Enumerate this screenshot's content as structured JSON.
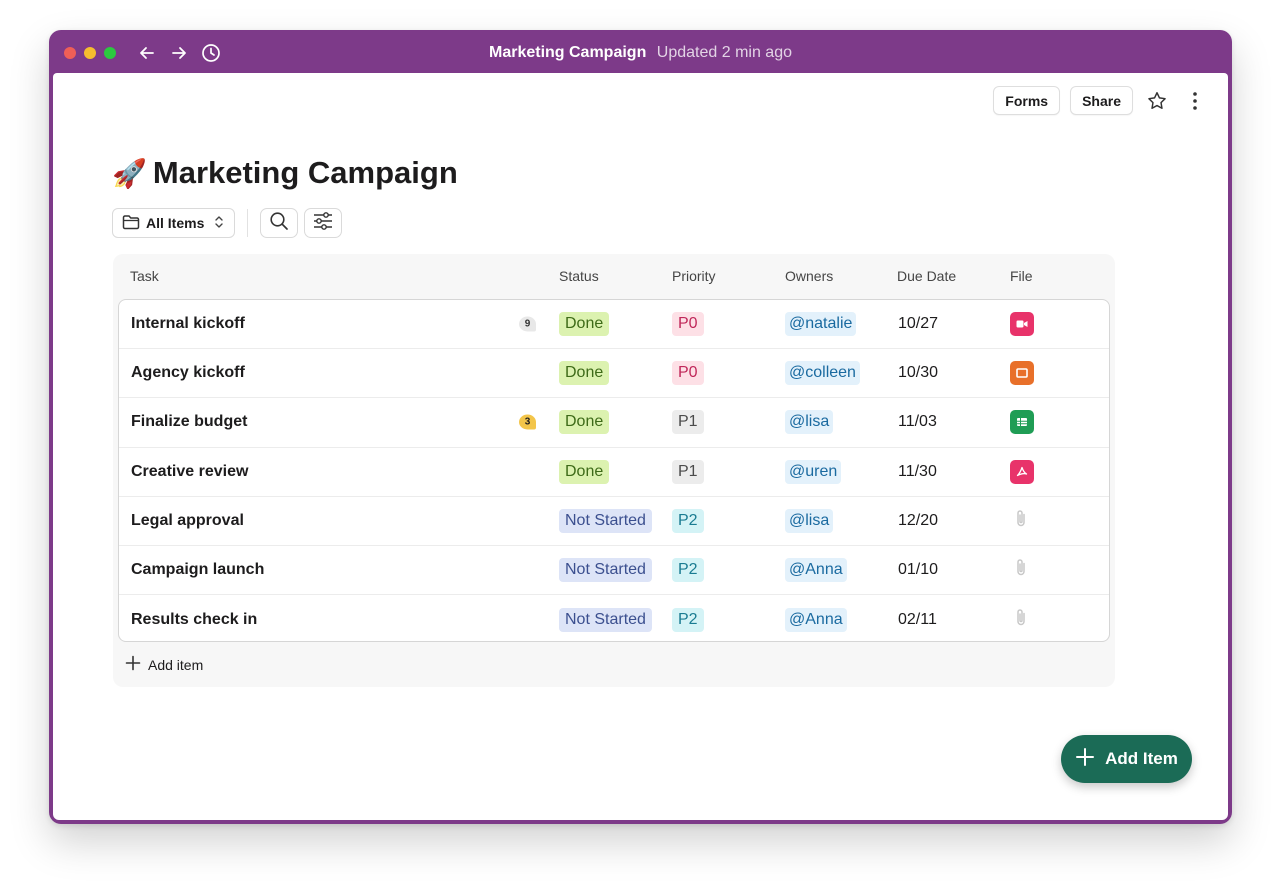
{
  "window": {
    "title": "Marketing Campaign",
    "updated": "Updated 2 min ago"
  },
  "toolbar": {
    "forms_label": "Forms",
    "share_label": "Share"
  },
  "page": {
    "emoji": "🚀",
    "title": "Marketing Campaign"
  },
  "filter": {
    "view_label": "All Items"
  },
  "table": {
    "columns": [
      "Task",
      "Status",
      "Priority",
      "Owners",
      "Due Date",
      "File"
    ],
    "rows": [
      {
        "task": "Internal kickoff",
        "comments": "9",
        "status": "Done",
        "priority": "P0",
        "owner": "@natalie",
        "due": "10/27",
        "file": "video"
      },
      {
        "task": "Agency kickoff",
        "comments": "",
        "status": "Done",
        "priority": "P0",
        "owner": "@colleen",
        "due": "10/30",
        "file": "slides"
      },
      {
        "task": "Finalize budget",
        "comments": "3",
        "status": "Done",
        "priority": "P1",
        "owner": "@lisa",
        "due": "11/03",
        "file": "sheet"
      },
      {
        "task": "Creative review",
        "comments": "",
        "status": "Done",
        "priority": "P1",
        "owner": "@uren",
        "due": "11/30",
        "file": "pdf"
      },
      {
        "task": "Legal approval",
        "comments": "",
        "status": "Not Started",
        "priority": "P2",
        "owner": "@lisa",
        "due": "12/20",
        "file": "none"
      },
      {
        "task": "Campaign launch",
        "comments": "",
        "status": "Not Started",
        "priority": "P2",
        "owner": "@Anna",
        "due": "01/10",
        "file": "none"
      },
      {
        "task": "Results check in",
        "comments": "",
        "status": "Not Started",
        "priority": "P2",
        "owner": "@Anna",
        "due": "02/11",
        "file": "none"
      }
    ],
    "add_label": "Add item"
  },
  "fab": {
    "label": "Add Item"
  },
  "colors": {
    "window_frame": "#7d3a89",
    "fab": "#1b6b56",
    "file_video": "#e8336a",
    "file_slides": "#e8702a",
    "file_sheet": "#1f9d55",
    "file_pdf": "#e8336a"
  },
  "icons": {
    "nav": [
      "arrow-left-icon",
      "arrow-right-icon",
      "history-icon"
    ],
    "top": [
      "star-icon",
      "more-vertical-icon"
    ],
    "filter": [
      "folder-icon",
      "chevron-updown-icon",
      "search-icon",
      "sliders-icon"
    ]
  }
}
